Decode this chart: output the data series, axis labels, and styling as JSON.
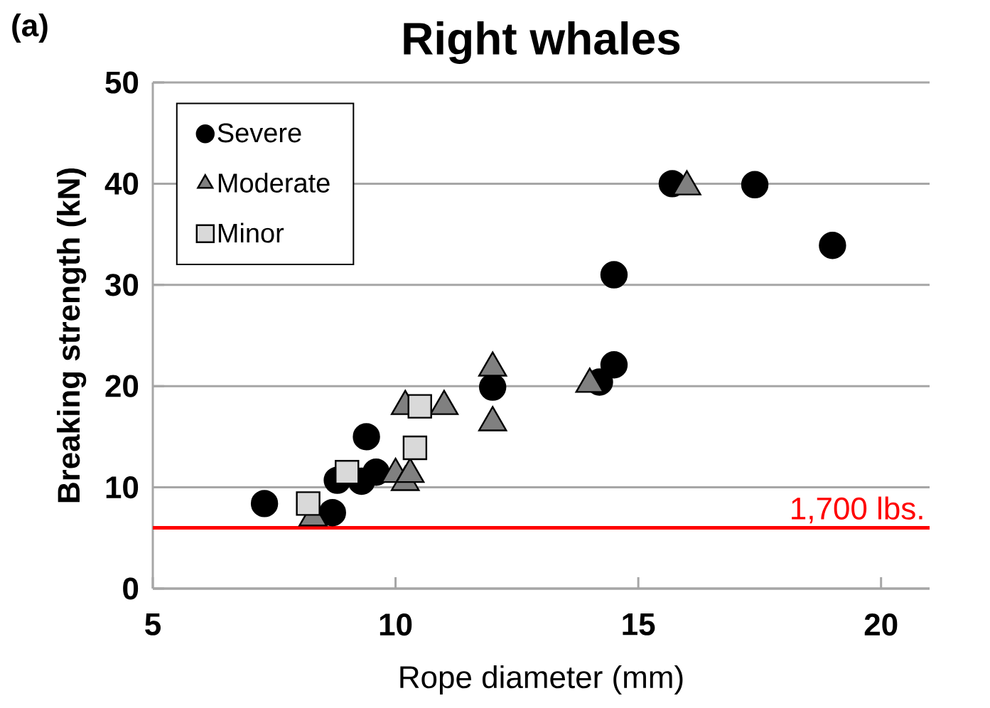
{
  "chart_data": {
    "type": "scatter",
    "title": "Right whales",
    "xlabel": "Rope diameter (mm)",
    "ylabel": "Breaking strength (kN)",
    "annotations": [
      "(a)"
    ],
    "xlim": [
      5,
      21
    ],
    "xticks": [
      5,
      10,
      15,
      20
    ],
    "ylim": [
      0,
      50
    ],
    "yticks": [
      0,
      10,
      20,
      30,
      40,
      50
    ],
    "grid": "y",
    "legend": "top left",
    "series": [
      {
        "name": "Severe",
        "color": "#000000",
        "marker": "circle",
        "x": [
          7.3,
          8.7,
          8.8,
          9.3,
          9.6,
          9.4,
          12.0,
          14.2,
          14.5,
          14.5,
          15.7,
          17.4,
          19.0
        ],
        "values": [
          8.4,
          7.5,
          10.7,
          10.6,
          11.5,
          15.0,
          19.9,
          20.4,
          22.1,
          31.0,
          40.0,
          39.9,
          33.9
        ]
      },
      {
        "name": "Moderate",
        "color": "#808080",
        "marker": "triangle",
        "x": [
          8.3,
          10.0,
          10.2,
          10.3,
          10.2,
          10.5,
          11.0,
          12.0,
          12.0,
          14.0,
          16.0
        ],
        "values": [
          7.0,
          11.3,
          10.5,
          11.3,
          18.0,
          null,
          18.0,
          21.8,
          16.4,
          20.2,
          39.7
        ]
      },
      {
        "name": "Minor",
        "color": "#d9d9d9",
        "marker": "square",
        "x": [
          8.2,
          9.0,
          10.4,
          10.5
        ],
        "values": [
          8.4,
          11.5,
          13.9,
          18.0
        ]
      }
    ],
    "ref_lines": [
      {
        "axis": "y",
        "value": 6.0,
        "label": "1,700 lbs.",
        "color": "#ff0000"
      }
    ]
  }
}
